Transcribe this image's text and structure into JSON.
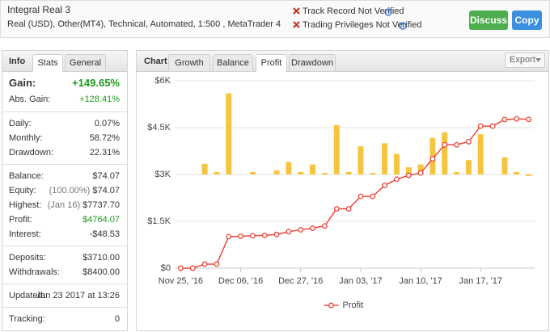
{
  "header": {
    "title": "Integral Real 3",
    "subtitle": "Real (USD), Other(MT4), Technical, Automated, 1:500 , MetaTrader 4",
    "notices": [
      "Track Record Not Verified",
      "Trading Privileges Not Verified"
    ],
    "buttons": [
      "Discuss",
      "Copy"
    ]
  },
  "info_panel": {
    "title": "Info",
    "tabs": [
      "Stats",
      "General"
    ],
    "stats": [
      [
        {
          "label": "Gain:",
          "value": "+149.65%"
        },
        {
          "label": "Abs. Gain:",
          "value": "+128.41%"
        }
      ],
      [
        {
          "label": "Daily:",
          "value": "0.07%"
        },
        {
          "label": "Monthly:",
          "value": "58.72%"
        },
        {
          "label": "Drawdown:",
          "value": "22.31%"
        }
      ],
      [
        {
          "label": "Balance:",
          "value": "$74.07"
        },
        {
          "label": "Equity:",
          "note": "(100.00%)",
          "value": "$74.07"
        },
        {
          "label": "Highest:",
          "note": "(Jan 16)",
          "value": "$7737.70"
        },
        {
          "label": "Profit:",
          "value": "$4764.07"
        },
        {
          "label": "Interest:",
          "value": "-$48.53"
        }
      ],
      [
        {
          "label": "Deposits:",
          "value": "$3710.00"
        },
        {
          "label": "Withdrawals:",
          "value": "$8400.00"
        }
      ],
      [
        {
          "label": "Updated:",
          "value": "Jan 23 2017 at 13:26"
        }
      ],
      [
        {
          "label": "Tracking:",
          "value": "0"
        }
      ]
    ]
  },
  "chart_panel": {
    "title": "Chart",
    "tabs": [
      "Growth",
      "Balance",
      "Profit",
      "Drawdown"
    ],
    "export": "Export"
  },
  "chart_data": {
    "type": "line",
    "categories": [
      "Nov 25, '16",
      null,
      null,
      null,
      null,
      "Dec 06, '16",
      null,
      null,
      null,
      null,
      "Dec 27, '16",
      null,
      null,
      null,
      null,
      "Jan 03, '17",
      null,
      null,
      null,
      null,
      "Jan 10, '17",
      null,
      null,
      null,
      null,
      "Jan 17, '17",
      null,
      null,
      null,
      null
    ],
    "series": [
      {
        "name": "Profit",
        "color": "#e8473f",
        "values": [
          0,
          0,
          130,
          130,
          1010,
          1020,
          1040,
          1050,
          1080,
          1170,
          1230,
          1280,
          1350,
          1900,
          1900,
          2300,
          2300,
          2650,
          2850,
          2970,
          3050,
          3500,
          3950,
          3950,
          4050,
          4550,
          4550,
          4760,
          4780,
          4764
        ]
      },
      {
        "type": "bar",
        "axis": "y2",
        "color": "#f5c53f",
        "values": [
          0,
          0,
          340,
          80,
          2600,
          0,
          80,
          0,
          130,
          400,
          80,
          320,
          50,
          1580,
          80,
          900,
          50,
          1000,
          660,
          230,
          320,
          1170,
          1350,
          80,
          460,
          1290,
          0,
          550,
          80,
          -50
        ]
      }
    ],
    "ylim": [
      0,
      6000
    ],
    "yticks": [
      {
        "value": 0,
        "label": "$0"
      },
      {
        "value": 1500,
        "label": "$1.5K"
      },
      {
        "value": 3000,
        "label": "$3K"
      },
      {
        "value": 4500,
        "label": "$4.5K"
      },
      {
        "value": 6000,
        "label": "$6K"
      }
    ],
    "y2lim": [
      -3000,
      3000
    ],
    "grid": true,
    "legend": "bottom"
  }
}
